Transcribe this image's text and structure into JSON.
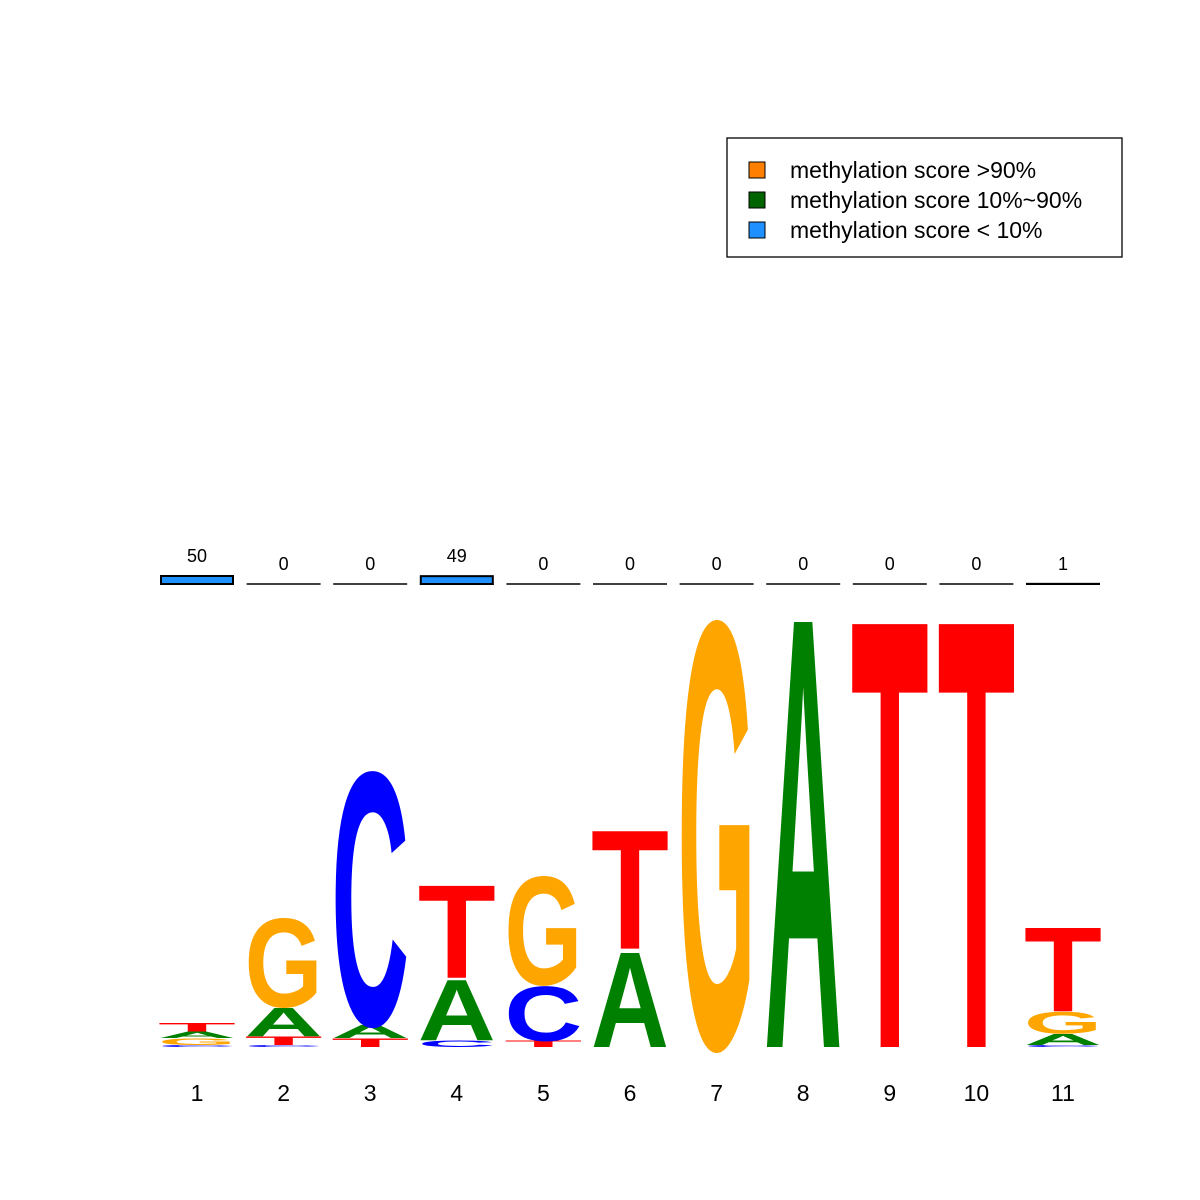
{
  "chart_data": {
    "type": "logo",
    "categories": [
      "1",
      "2",
      "3",
      "4",
      "5",
      "6",
      "7",
      "8",
      "9",
      "10",
      "11"
    ],
    "ylim": [
      0,
      2
    ],
    "colors": {
      "A": "#008000",
      "C": "#0000ff",
      "G": "#ffa500",
      "T": "#ff0000"
    },
    "stacks": [
      [
        {
          "letter": "C",
          "height": 0.01
        },
        {
          "letter": "G",
          "height": 0.03
        },
        {
          "letter": "A",
          "height": 0.03
        },
        {
          "letter": "T",
          "height": 0.04
        }
      ],
      [
        {
          "letter": "C",
          "height": 0.01
        },
        {
          "letter": "T",
          "height": 0.04
        },
        {
          "letter": "A",
          "height": 0.13
        },
        {
          "letter": "G",
          "height": 0.41
        }
      ],
      [
        {
          "letter": "T",
          "height": 0.04
        },
        {
          "letter": "A",
          "height": 0.06
        },
        {
          "letter": "C",
          "height": 1.17
        }
      ],
      [
        {
          "letter": "C",
          "height": 0.03
        },
        {
          "letter": "A",
          "height": 0.28
        },
        {
          "letter": "T",
          "height": 0.43
        }
      ],
      [
        {
          "letter": "T",
          "height": 0.03
        },
        {
          "letter": "C",
          "height": 0.25
        },
        {
          "letter": "G",
          "height": 0.5
        }
      ],
      [
        {
          "letter": "A",
          "height": 0.44
        },
        {
          "letter": "T",
          "height": 0.55
        }
      ],
      [
        {
          "letter": "G",
          "height": 1.97
        }
      ],
      [
        {
          "letter": "A",
          "height": 1.99
        }
      ],
      [
        {
          "letter": "T",
          "height": 1.98
        }
      ],
      [
        {
          "letter": "T",
          "height": 1.98
        }
      ],
      [
        {
          "letter": "C",
          "height": 0.01
        },
        {
          "letter": "A",
          "height": 0.05
        },
        {
          "letter": "G",
          "height": 0.1
        },
        {
          "letter": "T",
          "height": 0.39
        }
      ]
    ],
    "methylation": {
      "values": [
        50,
        0,
        0,
        49,
        0,
        0,
        0,
        0,
        0,
        0,
        1
      ],
      "color": "#1e90ff"
    },
    "legend": [
      {
        "label": "methylation score >90%",
        "color": "#ff8000"
      },
      {
        "label": "methylation score 10%~90%",
        "color": "#006400"
      },
      {
        "label": "methylation score < 10%",
        "color": "#1e90ff"
      }
    ]
  }
}
